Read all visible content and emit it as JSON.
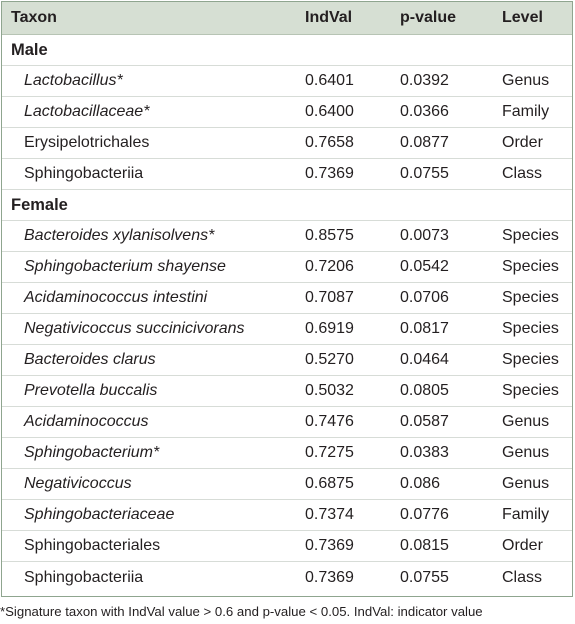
{
  "header": {
    "taxon": "Taxon",
    "indval": "IndVal",
    "pvalue": "p-value",
    "level": "Level"
  },
  "groups": [
    {
      "name": "Male",
      "rows": [
        {
          "taxon": "Lactobacillus*",
          "italic": true,
          "indval": "0.6401",
          "pvalue": "0.0392",
          "level": "Genus"
        },
        {
          "taxon": "Lactobacillaceae*",
          "italic": true,
          "indval": "0.6400",
          "pvalue": "0.0366",
          "level": "Family"
        },
        {
          "taxon": "Erysipelotrichales",
          "italic": false,
          "indval": "0.7658",
          "pvalue": "0.0877",
          "level": "Order"
        },
        {
          "taxon": "Sphingobacteriia",
          "italic": false,
          "indval": "0.7369",
          "pvalue": "0.0755",
          "level": "Class"
        }
      ]
    },
    {
      "name": "Female",
      "rows": [
        {
          "taxon": "Bacteroides xylanisolvens*",
          "italic": true,
          "indval": "0.8575",
          "pvalue": "0.0073",
          "level": "Species"
        },
        {
          "taxon": "Sphingobacterium shayense",
          "italic": true,
          "indval": "0.7206",
          "pvalue": "0.0542",
          "level": "Species"
        },
        {
          "taxon": "Acidaminococcus intestini",
          "italic": true,
          "indval": "0.7087",
          "pvalue": "0.0706",
          "level": "Species"
        },
        {
          "taxon": "Negativicoccus succinicivorans",
          "italic": true,
          "indval": "0.6919",
          "pvalue": "0.0817",
          "level": "Species"
        },
        {
          "taxon": "Bacteroides clarus",
          "italic": true,
          "indval": "0.5270",
          "pvalue": "0.0464",
          "level": "Species"
        },
        {
          "taxon": "Prevotella buccalis",
          "italic": true,
          "indval": "0.5032",
          "pvalue": "0.0805",
          "level": "Species"
        },
        {
          "taxon": "Acidaminococcus",
          "italic": true,
          "indval": "0.7476",
          "pvalue": "0.0587",
          "level": "Genus"
        },
        {
          "taxon": "Sphingobacterium*",
          "italic": true,
          "indval": "0.7275",
          "pvalue": "0.0383",
          "level": "Genus"
        },
        {
          "taxon": "Negativicoccus",
          "italic": true,
          "indval": "0.6875",
          "pvalue": "0.086",
          "level": "Genus"
        },
        {
          "taxon": "Sphingobacteriaceae",
          "italic": true,
          "indval": "0.7374",
          "pvalue": "0.0776",
          "level": "Family"
        },
        {
          "taxon": "Sphingobacteriales",
          "italic": false,
          "indval": "0.7369",
          "pvalue": "0.0815",
          "level": "Order"
        },
        {
          "taxon": "Sphingobacteriia",
          "italic": false,
          "indval": "0.7369",
          "pvalue": "0.0755",
          "level": "Class"
        }
      ]
    }
  ],
  "footnote": "*Signature taxon with IndVal value > 0.6 and p-value < 0.05. IndVal: indicator value",
  "colors": {
    "header_bg": "#d6dfd3",
    "border": "#8fa58f",
    "row_divider": "#d7dcd7"
  }
}
